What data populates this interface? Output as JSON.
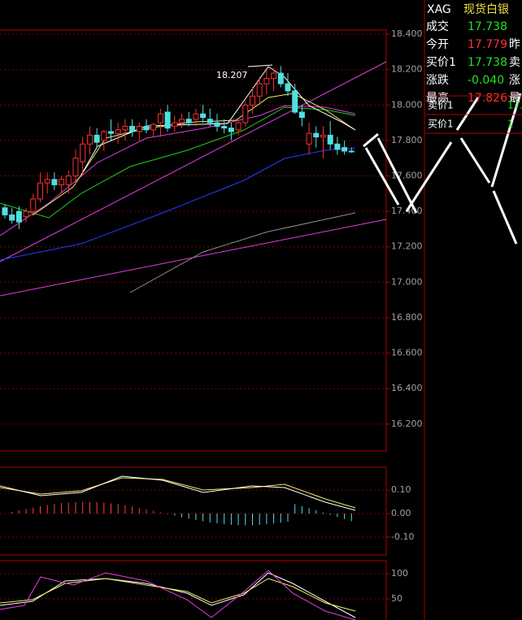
{
  "main_chart": {
    "annotation": "18.207",
    "ylim": [
      16.048,
      18.423
    ],
    "yticks": [
      {
        "value": 18.4,
        "label": "18.400"
      },
      {
        "value": 18.2,
        "label": "18.200"
      },
      {
        "value": 18.0,
        "label": "18.000"
      },
      {
        "value": 17.8,
        "label": "17.800"
      },
      {
        "value": 17.6,
        "label": "17.600"
      },
      {
        "value": 17.4,
        "label": "17.400"
      },
      {
        "value": 17.2,
        "label": "17.200"
      },
      {
        "value": 17.0,
        "label": "17.000"
      },
      {
        "value": 16.8,
        "label": "16.800"
      },
      {
        "value": 16.6,
        "label": "16.600"
      },
      {
        "value": 16.4,
        "label": "16.400"
      },
      {
        "value": 16.2,
        "label": "16.200"
      }
    ],
    "candles": [
      [
        17.42,
        17.44,
        17.36,
        17.38
      ],
      [
        17.38,
        17.42,
        17.33,
        17.35
      ],
      [
        17.4,
        17.43,
        17.3,
        17.34
      ],
      [
        17.37,
        17.42,
        17.34,
        17.4
      ],
      [
        17.4,
        17.5,
        17.38,
        17.47
      ],
      [
        17.47,
        17.62,
        17.45,
        17.56
      ],
      [
        17.56,
        17.62,
        17.5,
        17.58
      ],
      [
        17.58,
        17.62,
        17.52,
        17.55
      ],
      [
        17.55,
        17.6,
        17.5,
        17.58
      ],
      [
        17.55,
        17.63,
        17.5,
        17.6
      ],
      [
        17.6,
        17.75,
        17.55,
        17.7
      ],
      [
        17.68,
        17.82,
        17.6,
        17.78
      ],
      [
        17.78,
        17.88,
        17.72,
        17.83
      ],
      [
        17.83,
        17.87,
        17.76,
        17.79
      ],
      [
        17.8,
        17.86,
        17.74,
        17.85
      ],
      [
        17.85,
        17.92,
        17.8,
        17.84
      ],
      [
        17.84,
        17.9,
        17.78,
        17.86
      ],
      [
        17.86,
        17.92,
        17.8,
        17.88
      ],
      [
        17.88,
        17.92,
        17.82,
        17.85
      ],
      [
        17.85,
        17.9,
        17.8,
        17.88
      ],
      [
        17.88,
        17.92,
        17.84,
        17.86
      ],
      [
        17.86,
        17.9,
        17.82,
        17.89
      ],
      [
        17.9,
        17.98,
        17.82,
        17.95
      ],
      [
        17.96,
        18.0,
        17.85,
        17.87
      ],
      [
        17.88,
        17.94,
        17.85,
        17.9
      ],
      [
        17.9,
        17.95,
        17.87,
        17.92
      ],
      [
        17.92,
        17.96,
        17.88,
        17.9
      ],
      [
        17.92,
        17.98,
        17.88,
        17.95
      ],
      [
        17.95,
        18.0,
        17.9,
        17.93
      ],
      [
        17.92,
        17.98,
        17.88,
        17.9
      ],
      [
        17.9,
        17.95,
        17.85,
        17.88
      ],
      [
        17.88,
        17.92,
        17.84,
        17.87
      ],
      [
        17.87,
        17.9,
        17.8,
        17.85
      ],
      [
        17.86,
        17.92,
        17.83,
        17.9
      ],
      [
        17.9,
        18.02,
        17.88,
        18.0
      ],
      [
        18.0,
        18.1,
        17.95,
        18.05
      ],
      [
        18.05,
        18.16,
        18.0,
        18.12
      ],
      [
        18.12,
        18.2,
        18.06,
        18.15
      ],
      [
        18.15,
        18.21,
        18.08,
        18.18
      ],
      [
        18.18,
        18.22,
        18.1,
        18.12
      ],
      [
        18.12,
        18.18,
        18.05,
        18.08
      ],
      [
        18.08,
        18.12,
        17.95,
        17.96
      ],
      [
        17.96,
        18.0,
        17.88,
        17.93
      ],
      [
        17.78,
        17.9,
        17.72,
        17.84
      ],
      [
        17.84,
        17.88,
        17.76,
        17.82
      ],
      [
        17.82,
        17.88,
        17.7,
        17.83
      ],
      [
        17.83,
        17.91,
        17.75,
        17.78
      ],
      [
        17.78,
        17.82,
        17.72,
        17.75
      ],
      [
        17.76,
        17.8,
        17.72,
        17.74
      ],
      [
        17.74,
        17.76,
        17.73,
        17.738
      ]
    ]
  },
  "macd_panel": {
    "ylim": [
      -0.176,
      0.197
    ],
    "yticks": [
      {
        "value": 0.1,
        "label": "0.10"
      },
      {
        "value": 0,
        "label": "0.00"
      },
      {
        "value": -0.1,
        "label": "-0.10"
      }
    ]
  },
  "kdj_panel": {
    "ylim": [
      8,
      125.8
    ],
    "yticks": [
      100,
      50
    ]
  },
  "quote_panel": {
    "symbol": "XAG",
    "name": "现货白银",
    "rows": [
      [
        "成交",
        "17.738",
        ""
      ],
      [
        "今开",
        "17.779",
        "昨"
      ],
      [
        "买价1",
        "17.738",
        "卖"
      ],
      [
        "涨跌",
        "-0.040",
        "涨"
      ],
      [
        "最高",
        "17.826",
        "最"
      ]
    ],
    "depth": [
      [
        "卖价1",
        "17."
      ],
      [
        "买价1",
        "1"
      ]
    ]
  }
}
